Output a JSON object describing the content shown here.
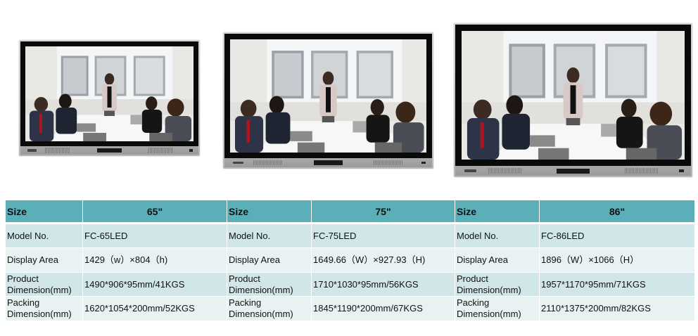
{
  "product_images": [
    {
      "size": "65\"",
      "alt_scene": "meeting-room-photo"
    },
    {
      "size": "75\"",
      "alt_scene": "meeting-room-photo"
    },
    {
      "size": "86\"",
      "alt_scene": "meeting-room-photo"
    }
  ],
  "table": {
    "row_labels": {
      "size": "Size",
      "model": "Model No.",
      "display": "Display Area",
      "product": [
        "Product",
        "Dimension(mm)"
      ],
      "packing": [
        "Packing",
        "Dimension(mm)"
      ]
    },
    "columns": [
      {
        "size": "65\"",
        "model": "FC-65LED",
        "display": "1429（w）×804（h)",
        "product": "1490*906*95mm/41KGS",
        "packing": "1620*1054*200mm/52KGS"
      },
      {
        "size": "75\"",
        "model": "FC-75LED",
        "display": "1649.66（W）×927.93（H)",
        "product": "1710*1030*95mm/56KGS",
        "packing": "1845*1190*200mm/67KGS"
      },
      {
        "size": "86\"",
        "model": "FC-86LED",
        "display": "1896（W）×1066（H）",
        "product": "1957*1170*95mm/71KGS",
        "packing": "2110*1375*200mm/82KGS"
      }
    ]
  },
  "colors": {
    "header": "#5aafb9",
    "row_dark": "#d1e6e9",
    "row_light": "#e9f2f3"
  }
}
